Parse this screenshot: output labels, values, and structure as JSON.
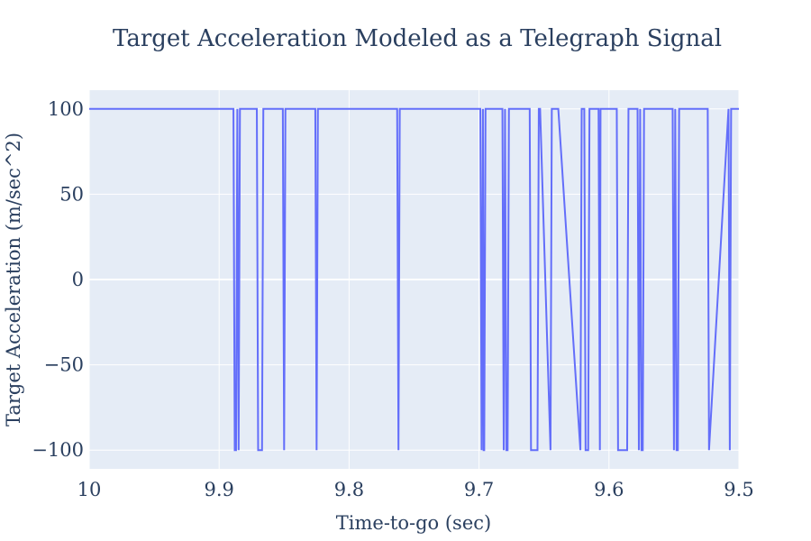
{
  "chart_data": {
    "type": "line",
    "line_shape": "step",
    "title": "Target Acceleration Modeled as a Telegraph Signal",
    "xlabel": "Time-to-go (sec)",
    "ylabel": "Target Acceleration (m/sec^2)",
    "xlim": [
      10,
      9.5
    ],
    "x_reversed": true,
    "ylim": [
      -111,
      111
    ],
    "xticks": [
      10,
      9.9,
      9.8,
      9.7,
      9.6,
      9.5
    ],
    "xtick_labels": [
      "10",
      "9.9",
      "9.8",
      "9.7",
      "9.6",
      "9.5"
    ],
    "yticks": [
      100,
      50,
      0,
      -50,
      -100
    ],
    "ytick_labels": [
      "100",
      "50",
      "0",
      "−50",
      "−100"
    ],
    "grid": true,
    "plot_bgcolor": "#e5ecf6",
    "line_color": "#636efa",
    "series": [
      {
        "x": [
          10.0,
          9.889,
          9.888,
          9.887,
          9.886,
          9.885,
          9.884,
          9.871,
          9.87,
          9.867,
          9.866,
          9.851,
          9.85,
          9.849,
          9.826,
          9.825,
          9.824,
          9.763,
          9.762,
          9.761,
          9.699,
          9.698,
          9.697,
          9.6965,
          9.696,
          9.695,
          9.694,
          9.682,
          9.681,
          9.68,
          9.679,
          9.678,
          9.677,
          9.661,
          9.66,
          9.655,
          9.654,
          9.653,
          9.645,
          9.644,
          9.64,
          9.639,
          9.622,
          9.621,
          9.619,
          9.618,
          9.616,
          9.615,
          9.614,
          9.608,
          9.607,
          9.6065,
          9.6,
          9.594,
          9.593,
          9.586,
          9.585,
          9.578,
          9.577,
          9.576,
          9.575,
          9.574,
          9.573,
          9.572,
          9.551,
          9.55,
          9.549,
          9.548,
          9.547,
          9.546,
          9.524,
          9.523,
          9.508,
          9.507,
          9.506,
          9.5
        ],
        "y": [
          100,
          100,
          -100,
          -100,
          100,
          -100,
          100,
          100,
          -100,
          -100,
          100,
          100,
          -100,
          100,
          100,
          -100,
          100,
          100,
          -100,
          100,
          100,
          -100,
          100,
          -100,
          -100,
          100,
          100,
          100,
          -100,
          100,
          -100,
          -100,
          100,
          100,
          -100,
          -100,
          100,
          100,
          -100,
          100,
          100,
          100,
          -100,
          100,
          100,
          -100,
          -100,
          100,
          100,
          100,
          -100,
          100,
          100,
          100,
          -100,
          -100,
          100,
          100,
          -100,
          100,
          -100,
          -100,
          100,
          100,
          100,
          -100,
          100,
          -100,
          -100,
          100,
          100,
          -100,
          100,
          -100,
          100,
          100
        ]
      }
    ]
  }
}
